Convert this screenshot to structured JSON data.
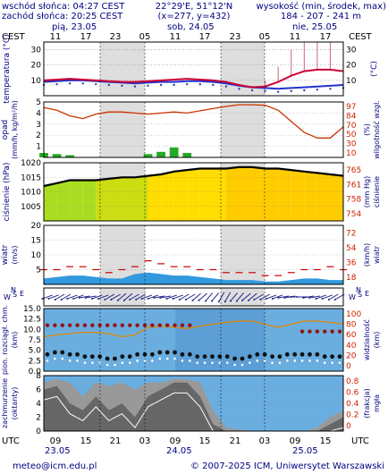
{
  "header": {
    "sunrise": "wschód słońca: 04:27 CEST",
    "sunset": "zachód słońca: 20:25 CEST",
    "coords": "22°29'E, 51°12'N",
    "grid": "(x=277, y=432)",
    "elev_label": "wysokość (min, środek, max)",
    "elev_values": "184 - 207 - 241 m"
  },
  "top_axis": {
    "tz_left": "CEST",
    "tz_right": "CEST",
    "days": [
      "pią, 23.05",
      "sob, 24.05",
      "nie, 25.05"
    ],
    "hours": [
      "11",
      "17",
      "23",
      "05",
      "11",
      "17",
      "23",
      "05",
      "11",
      "17"
    ]
  },
  "bottom_axis": {
    "tz_left": "UTC",
    "tz_right": "UTC",
    "hours": [
      "09",
      "15",
      "21",
      "03",
      "09",
      "15",
      "21",
      "03",
      "09",
      "15"
    ],
    "days": [
      "23.05",
      "24.05",
      "25.05"
    ]
  },
  "footer": {
    "email": "meteo@icm.edu.pl",
    "copyright": "© 2007-2025 ICM, Uniwersytet Warszawski"
  },
  "colors": {
    "temp_line": "#cc0033",
    "dew_line": "#2233cc",
    "precip": "#22aa22",
    "humidity_line": "#cc3300",
    "pressure_line": "#000000",
    "pressure_fill": "#ffcc00",
    "wind_fill": "#3399dd",
    "gust_line": "#cc0000",
    "cloud_fill": "#666666",
    "night": "#dddddd"
  },
  "chart_data": [
    {
      "type": "line",
      "panel": "temperature",
      "ylabel_left": "temperatura (°C)",
      "ylabel_right": "(°C)",
      "ylim": [
        0,
        35
      ],
      "ticks": [
        10,
        20,
        30
      ],
      "x_step_hours": 3,
      "series": [
        {
          "values": [
            10,
            10.5,
            11,
            10.5,
            10,
            9.5,
            9,
            9,
            9.5,
            10,
            10.5,
            11,
            10.5,
            10,
            9,
            7,
            5.5,
            6,
            9,
            13,
            16,
            17,
            17,
            16
          ]
        },
        {
          "values": [
            9,
            9.5,
            10,
            10,
            9.5,
            9,
            8.5,
            8,
            8.5,
            9,
            9,
            9.5,
            9.5,
            9,
            8,
            6.5,
            5.5,
            5,
            4.5,
            5,
            5.5,
            6,
            6.5,
            7
          ]
        }
      ],
      "spread_max": [
        0,
        0,
        0,
        0,
        0,
        0,
        0,
        0,
        0,
        0,
        0,
        0,
        0,
        0,
        0,
        0,
        1,
        4,
        10,
        17,
        20,
        21,
        18,
        14
      ]
    },
    {
      "type": "bar",
      "panel": "precipitation",
      "ylabel_left": "opad (mm/h, kg/m²/h)",
      "ylabel_right": "wilgotność wzgl. (%)",
      "ylim": [
        0,
        5
      ],
      "ticks": [
        1,
        2,
        3,
        4,
        5
      ],
      "right_ticks": [
        10,
        30,
        50,
        70,
        84,
        97
      ],
      "precip_values": [
        0.4,
        0.3,
        0.2,
        0,
        0,
        0,
        0,
        0,
        0.3,
        0.5,
        0.9,
        0.4,
        0,
        0,
        0,
        0,
        0,
        0,
        0,
        0,
        0,
        0,
        0,
        0
      ],
      "humidity_values": [
        90,
        85,
        75,
        70,
        78,
        82,
        82,
        80,
        78,
        80,
        82,
        80,
        84,
        88,
        92,
        95,
        95,
        94,
        85,
        65,
        45,
        35,
        35,
        55
      ]
    },
    {
      "type": "area",
      "panel": "pressure",
      "ylabel_left": "ciśnienie (hPa)",
      "ylabel_right": "(mm Hg) ciśnienie",
      "ylim": [
        1000,
        1020
      ],
      "ticks": [
        1005,
        1010,
        1015,
        1020
      ],
      "right_ticks": [
        754,
        758,
        761,
        765
      ],
      "values": [
        1012,
        1013,
        1014,
        1014,
        1014,
        1014.5,
        1015,
        1015,
        1015.5,
        1016,
        1017,
        1017.5,
        1018,
        1018,
        1018,
        1018.5,
        1018.5,
        1018,
        1018,
        1017.5,
        1017,
        1016.5,
        1016,
        1015.5
      ]
    },
    {
      "type": "area",
      "panel": "wind",
      "ylabel_left": "wiatr (m/s)",
      "ylabel_right": "(km/h) wiatr",
      "ylim": [
        0,
        20
      ],
      "ticks": [
        5,
        10,
        15,
        20
      ],
      "right_ticks": [
        18,
        36,
        54,
        72
      ],
      "speed": [
        2,
        2.5,
        3,
        3,
        2.5,
        2,
        2,
        3.5,
        4,
        3.5,
        3,
        3,
        2.5,
        2,
        1.5,
        1.5,
        1.5,
        1,
        1,
        1.5,
        2,
        2,
        1.5,
        1.5
      ],
      "gust": [
        5,
        5,
        6,
        6,
        5,
        4,
        5,
        6,
        8,
        7,
        6,
        6,
        5,
        5,
        4,
        4,
        4,
        3,
        3,
        4,
        5,
        5,
        6,
        5
      ]
    },
    {
      "type": "line",
      "panel": "visibility",
      "ylabel_left": "pion. rozciągł. chm. (km)",
      "ylabel_right": "widzialność (km)",
      "ylim": [
        0,
        15
      ],
      "ticks": [
        0,
        2.5,
        5,
        7.5,
        10,
        12.5,
        15
      ],
      "right_ticks": [
        0,
        20,
        40,
        60,
        80,
        100
      ],
      "visibility": [
        55,
        58,
        60,
        62,
        62,
        60,
        55,
        58,
        70,
        72,
        70,
        68,
        72,
        75,
        78,
        80,
        80,
        75,
        70,
        75,
        80,
        80,
        78,
        75
      ],
      "cloud_top": [
        11,
        11,
        11,
        11,
        11,
        11,
        11,
        11,
        11,
        11,
        11,
        11,
        10.5,
        10.5,
        10.5,
        10.5,
        10.5,
        10,
        9.5,
        9.5,
        9.5,
        9.5,
        9.5,
        9.5
      ],
      "cloud_base": [
        4,
        4.5,
        4,
        3.5,
        3.5,
        3,
        3.5,
        4,
        4,
        4.5,
        4.5,
        4,
        3.5,
        3.5,
        3.5,
        3,
        3.5,
        4,
        3.5,
        4,
        4,
        4,
        3.5,
        3.5
      ]
    },
    {
      "type": "area",
      "panel": "cloudiness",
      "ylabel_left": "zachmurzenie (oktanty)",
      "ylabel_right": "(frakcja) mgła",
      "ylim": [
        0,
        8
      ],
      "ticks": [
        0,
        2,
        4,
        6,
        8
      ],
      "right_ticks": [
        0,
        0.2,
        0.4,
        0.6,
        0.8
      ],
      "total": [
        7,
        7.5,
        7,
        5,
        7,
        6.5,
        7,
        6,
        7,
        7,
        7.5,
        7.5,
        7,
        3,
        0.5,
        0.2,
        0,
        0,
        0,
        0,
        0,
        0.5,
        2,
        3
      ],
      "low": [
        6,
        6.5,
        4,
        3,
        5,
        3,
        4,
        2,
        5,
        6,
        7,
        7,
        5,
        1,
        0,
        0,
        0,
        0,
        0,
        0,
        0,
        0,
        1,
        2
      ]
    }
  ]
}
